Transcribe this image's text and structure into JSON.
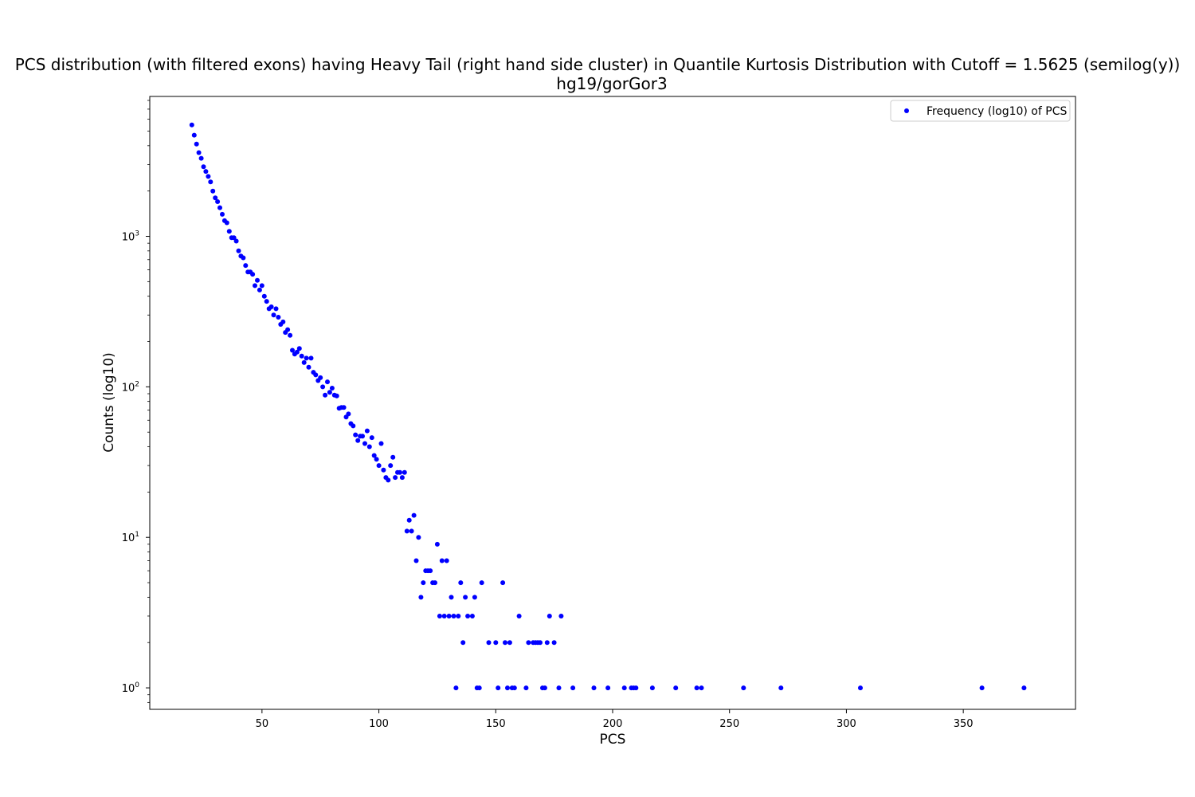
{
  "chart_data": {
    "type": "scatter",
    "title": "PCS distribution (with filtered exons) having Heavy Tail (right hand side cluster) in Quantile Kurtosis Distribution with Cutoff = 1.5625 (semilog(y))",
    "subtitle": "hg19/gorGor3",
    "xlabel": "PCS",
    "ylabel": "Counts (log10)",
    "x_scale": "linear",
    "y_scale": "log",
    "xlim": [
      2,
      398
    ],
    "ylim": [
      0.72,
      8500
    ],
    "x_ticks": [
      50,
      100,
      150,
      200,
      250,
      300,
      350
    ],
    "y_ticks": [
      {
        "value": 1,
        "base": "10",
        "exp": "0"
      },
      {
        "value": 10,
        "base": "10",
        "exp": "1"
      },
      {
        "value": 100,
        "base": "10",
        "exp": "2"
      },
      {
        "value": 1000,
        "base": "10",
        "exp": "3"
      }
    ],
    "grid": false,
    "legend": {
      "position": "top-right"
    },
    "series": [
      {
        "name": "Frequency (log10) of PCS",
        "color": "#0000ff",
        "marker": "dot",
        "points": [
          [
            20,
            5500
          ],
          [
            21,
            4700
          ],
          [
            22,
            4100
          ],
          [
            23,
            3600
          ],
          [
            24,
            3300
          ],
          [
            25,
            2900
          ],
          [
            26,
            2700
          ],
          [
            27,
            2500
          ],
          [
            28,
            2300
          ],
          [
            29,
            2000
          ],
          [
            30,
            1800
          ],
          [
            31,
            1700
          ],
          [
            32,
            1550
          ],
          [
            33,
            1400
          ],
          [
            34,
            1270
          ],
          [
            35,
            1230
          ],
          [
            36,
            1080
          ],
          [
            37,
            980
          ],
          [
            38,
            980
          ],
          [
            39,
            930
          ],
          [
            40,
            800
          ],
          [
            41,
            740
          ],
          [
            42,
            720
          ],
          [
            43,
            640
          ],
          [
            44,
            580
          ],
          [
            45,
            580
          ],
          [
            46,
            560
          ],
          [
            47,
            470
          ],
          [
            48,
            510
          ],
          [
            49,
            440
          ],
          [
            50,
            470
          ],
          [
            51,
            400
          ],
          [
            52,
            370
          ],
          [
            53,
            330
          ],
          [
            54,
            340
          ],
          [
            55,
            300
          ],
          [
            56,
            330
          ],
          [
            57,
            290
          ],
          [
            58,
            260
          ],
          [
            59,
            270
          ],
          [
            60,
            230
          ],
          [
            61,
            240
          ],
          [
            62,
            220
          ],
          [
            63,
            175
          ],
          [
            64,
            165
          ],
          [
            65,
            170
          ],
          [
            66,
            180
          ],
          [
            67,
            160
          ],
          [
            68,
            145
          ],
          [
            69,
            155
          ],
          [
            70,
            135
          ],
          [
            71,
            155
          ],
          [
            72,
            125
          ],
          [
            73,
            120
          ],
          [
            74,
            110
          ],
          [
            75,
            115
          ],
          [
            76,
            100
          ],
          [
            77,
            88
          ],
          [
            78,
            108
          ],
          [
            79,
            92
          ],
          [
            80,
            98
          ],
          [
            81,
            88
          ],
          [
            82,
            87
          ],
          [
            83,
            72
          ],
          [
            84,
            73
          ],
          [
            85,
            73
          ],
          [
            86,
            63
          ],
          [
            87,
            66
          ],
          [
            88,
            57
          ],
          [
            89,
            55
          ],
          [
            90,
            48
          ],
          [
            91,
            44
          ],
          [
            92,
            47
          ],
          [
            93,
            47
          ],
          [
            94,
            42
          ],
          [
            95,
            51
          ],
          [
            96,
            40
          ],
          [
            97,
            46
          ],
          [
            98,
            35
          ],
          [
            99,
            33
          ],
          [
            100,
            30
          ],
          [
            101,
            42
          ],
          [
            102,
            28
          ],
          [
            103,
            25
          ],
          [
            104,
            24
          ],
          [
            105,
            30
          ],
          [
            106,
            34
          ],
          [
            107,
            25
          ],
          [
            108,
            27
          ],
          [
            109,
            27
          ],
          [
            110,
            25
          ],
          [
            111,
            27
          ],
          [
            112,
            11
          ],
          [
            113,
            13
          ],
          [
            114,
            11
          ],
          [
            115,
            14
          ],
          [
            116,
            7
          ],
          [
            117,
            10
          ],
          [
            118,
            4
          ],
          [
            119,
            5
          ],
          [
            120,
            6
          ],
          [
            121,
            6
          ],
          [
            122,
            6
          ],
          [
            123,
            5
          ],
          [
            124,
            5
          ],
          [
            125,
            9
          ],
          [
            126,
            3
          ],
          [
            127,
            7
          ],
          [
            128,
            3
          ],
          [
            129,
            7
          ],
          [
            130,
            3
          ],
          [
            131,
            4
          ],
          [
            132,
            3
          ],
          [
            133,
            1
          ],
          [
            134,
            3
          ],
          [
            135,
            5
          ],
          [
            136,
            2
          ],
          [
            137,
            4
          ],
          [
            138,
            3
          ],
          [
            140,
            3
          ],
          [
            141,
            4
          ],
          [
            142,
            1
          ],
          [
            143,
            1
          ],
          [
            144,
            5
          ],
          [
            147,
            2
          ],
          [
            150,
            2
          ],
          [
            151,
            1
          ],
          [
            153,
            5
          ],
          [
            154,
            2
          ],
          [
            155,
            1
          ],
          [
            156,
            2
          ],
          [
            157,
            1
          ],
          [
            158,
            1
          ],
          [
            160,
            3
          ],
          [
            163,
            1
          ],
          [
            164,
            2
          ],
          [
            166,
            2
          ],
          [
            167,
            2
          ],
          [
            168,
            2
          ],
          [
            169,
            2
          ],
          [
            170,
            1
          ],
          [
            171,
            1
          ],
          [
            172,
            2
          ],
          [
            173,
            3
          ],
          [
            175,
            2
          ],
          [
            177,
            1
          ],
          [
            178,
            3
          ],
          [
            183,
            1
          ],
          [
            192,
            1
          ],
          [
            198,
            1
          ],
          [
            205,
            1
          ],
          [
            208,
            1
          ],
          [
            209,
            1
          ],
          [
            210,
            1
          ],
          [
            217,
            1
          ],
          [
            227,
            1
          ],
          [
            236,
            1
          ],
          [
            238,
            1
          ],
          [
            256,
            1
          ],
          [
            272,
            1
          ],
          [
            306,
            1
          ],
          [
            358,
            1
          ],
          [
            376,
            1
          ]
        ]
      }
    ]
  }
}
